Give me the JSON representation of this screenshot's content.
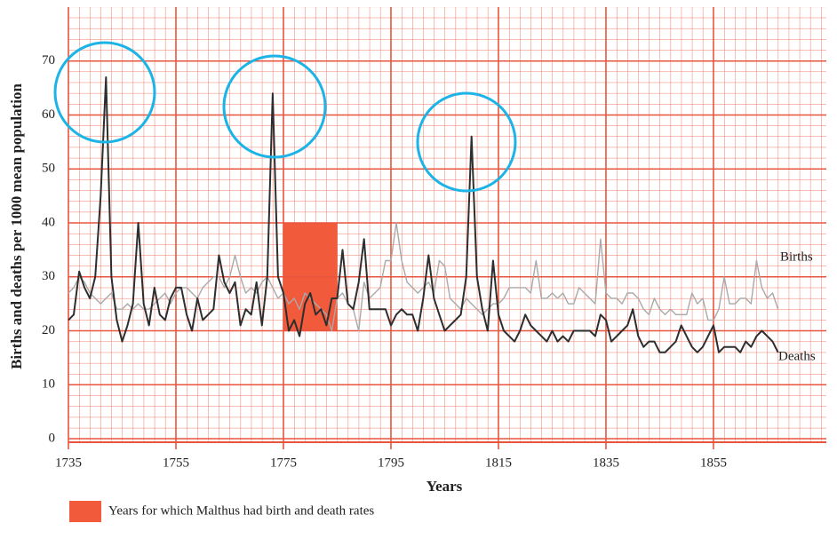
{
  "chart_data": {
    "type": "line",
    "y_label": "Births and deaths per 1000 mean population",
    "x_label": "Years",
    "x": [
      1735,
      1736,
      1737,
      1738,
      1739,
      1740,
      1741,
      1742,
      1743,
      1744,
      1745,
      1746,
      1747,
      1748,
      1749,
      1750,
      1751,
      1752,
      1753,
      1754,
      1755,
      1756,
      1757,
      1758,
      1759,
      1760,
      1761,
      1762,
      1763,
      1764,
      1765,
      1766,
      1767,
      1768,
      1769,
      1770,
      1771,
      1772,
      1773,
      1774,
      1775,
      1776,
      1777,
      1778,
      1779,
      1780,
      1781,
      1782,
      1783,
      1784,
      1785,
      1786,
      1787,
      1788,
      1789,
      1790,
      1791,
      1792,
      1793,
      1794,
      1795,
      1796,
      1797,
      1798,
      1799,
      1800,
      1801,
      1802,
      1803,
      1804,
      1805,
      1806,
      1807,
      1808,
      1809,
      1810,
      1811,
      1812,
      1813,
      1814,
      1815,
      1816,
      1817,
      1818,
      1819,
      1820,
      1821,
      1822,
      1823,
      1824,
      1825,
      1826,
      1827,
      1828,
      1829,
      1830,
      1831,
      1832,
      1833,
      1834,
      1835,
      1836,
      1837,
      1838,
      1839,
      1840,
      1841,
      1842,
      1843,
      1844,
      1845,
      1846,
      1847,
      1848,
      1849,
      1850,
      1851,
      1852,
      1853,
      1854,
      1855,
      1856,
      1857,
      1858,
      1859,
      1860,
      1861,
      1862,
      1863,
      1864,
      1865,
      1866,
      1867
    ],
    "series": [
      {
        "name": "Births",
        "color": "#a9a9a9",
        "values": [
          27,
          28,
          30,
          29,
          27,
          26,
          25,
          26,
          27,
          24,
          24,
          25,
          24,
          25,
          24,
          24,
          25,
          26,
          27,
          25,
          27,
          28,
          28,
          27,
          26,
          28,
          29,
          30,
          30,
          28,
          30,
          34,
          30,
          27,
          28,
          27,
          29,
          30,
          28,
          26,
          27,
          25,
          26,
          24,
          27,
          26,
          25,
          24,
          23,
          20,
          26,
          27,
          25,
          24,
          20,
          29,
          26,
          27,
          28,
          33,
          33,
          40,
          33,
          29,
          28,
          27,
          28,
          29,
          27,
          33,
          32,
          26,
          25,
          24,
          26,
          25,
          24,
          23,
          24,
          25,
          25,
          26,
          28,
          28,
          28,
          28,
          27,
          33,
          26,
          26,
          27,
          26,
          27,
          25,
          25,
          28,
          27,
          26,
          25,
          37,
          27,
          26,
          26,
          25,
          27,
          27,
          26,
          24,
          23,
          26,
          24,
          23,
          24,
          23,
          23,
          23,
          27,
          25,
          26,
          22,
          22,
          24,
          30,
          25,
          25,
          26,
          26,
          25,
          33,
          28,
          26,
          27,
          24
        ]
      },
      {
        "name": "Deaths",
        "color": "#2e2e2e",
        "values": [
          22,
          23,
          31,
          28,
          26,
          30,
          45,
          67,
          30,
          22,
          18,
          21,
          25,
          40,
          25,
          21,
          28,
          23,
          22,
          26,
          28,
          28,
          23,
          20,
          26,
          22,
          23,
          24,
          34,
          29,
          27,
          29,
          21,
          24,
          23,
          29,
          21,
          30,
          64,
          30,
          27,
          20,
          22,
          19,
          25,
          27,
          23,
          24,
          21,
          26,
          26,
          35,
          25,
          24,
          29,
          37,
          24,
          24,
          24,
          24,
          21,
          23,
          24,
          23,
          23,
          20,
          26,
          34,
          26,
          23,
          20,
          21,
          22,
          23,
          30,
          56,
          30,
          24,
          20,
          33,
          23,
          20,
          19,
          18,
          20,
          23,
          21,
          20,
          19,
          18,
          20,
          18,
          19,
          18,
          20,
          20,
          20,
          20,
          19,
          23,
          22,
          18,
          19,
          20,
          21,
          24,
          19,
          17,
          18,
          18,
          16,
          16,
          17,
          18,
          21,
          19,
          17,
          16,
          17,
          19,
          21,
          16,
          17,
          17,
          17,
          16,
          18,
          17,
          19,
          20,
          19,
          18,
          16
        ]
      }
    ],
    "xlim": [
      1735,
      1876
    ],
    "ylim": [
      0,
      80
    ],
    "xticks": [
      1735,
      1755,
      1775,
      1795,
      1815,
      1835,
      1855
    ],
    "yticks": [
      0,
      10,
      20,
      30,
      40,
      50,
      60,
      70
    ],
    "grid": true,
    "grid_color": "#e8553e",
    "highlight": {
      "label": "Years for which Malthus had birth and death rates",
      "color": "#f25a3c",
      "x": [
        1775,
        1785
      ],
      "y": [
        20,
        40
      ]
    }
  }
}
